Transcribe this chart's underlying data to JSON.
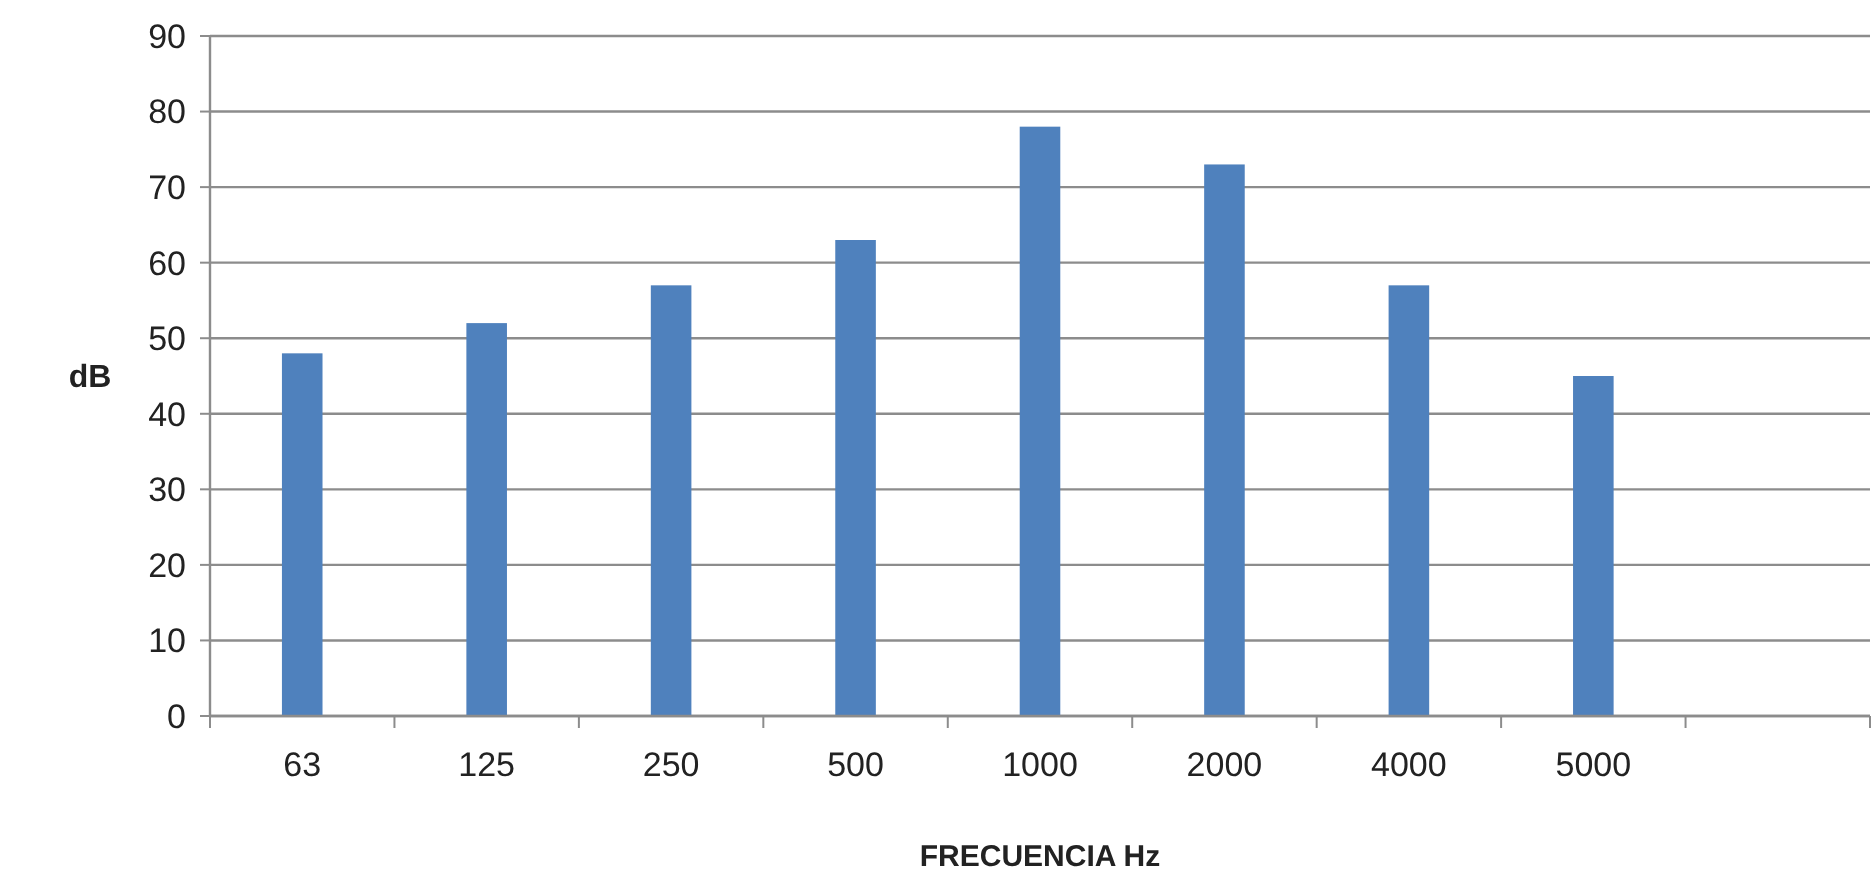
{
  "chart_data": {
    "type": "bar",
    "xlabel": "FRECUENCIA Hz",
    "ylabel": "dB",
    "categories": [
      "63",
      "125",
      "250",
      "500",
      "1000",
      "2000",
      "4000",
      "5000",
      null
    ],
    "values": [
      48,
      52,
      57,
      63,
      78,
      73,
      57,
      45,
      null
    ],
    "color": "#4f81bd",
    "ylim": [
      0,
      90
    ],
    "yticks": [
      0,
      10,
      20,
      30,
      40,
      50,
      60,
      70,
      80,
      90
    ],
    "grid": "y"
  }
}
